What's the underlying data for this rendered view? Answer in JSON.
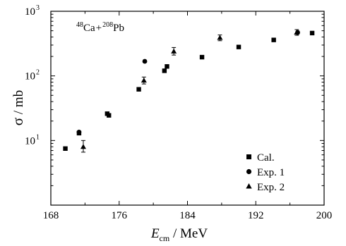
{
  "chart_data": {
    "type": "scatter",
    "title": "",
    "annotation": {
      "mass_projectile": "48",
      "projectile": "Ca",
      "plus": "+",
      "mass_target": "208",
      "target": "Pb"
    },
    "xlabel": {
      "symbol": "E",
      "subscript": "cm",
      "unit": " / MeV"
    },
    "ylabel": {
      "symbol": "σ",
      "unit": " / mb"
    },
    "x_scale": "linear",
    "y_scale": "log",
    "xlim": [
      168,
      200
    ],
    "ylim": [
      1,
      1000
    ],
    "x_ticks": [
      168,
      176,
      184,
      192,
      200
    ],
    "x_tick_labels": [
      "168",
      "176",
      "184",
      "192",
      "200"
    ],
    "y_ticks": [
      10,
      100,
      1000
    ],
    "y_tick_labels": [
      {
        "base": "10",
        "exp": "1"
      },
      {
        "base": "10",
        "exp": "2"
      },
      {
        "base": "10",
        "exp": "3"
      }
    ],
    "grid": false,
    "legend_position": "bottom-right",
    "series": [
      {
        "name": "Cal.",
        "marker": "square",
        "color": "#000000",
        "points": [
          {
            "x": 169.7,
            "y": 7.5
          },
          {
            "x": 171.3,
            "y": 13.0
          },
          {
            "x": 174.6,
            "y": 26.0
          },
          {
            "x": 174.8,
            "y": 24.5
          },
          {
            "x": 178.3,
            "y": 62.0
          },
          {
            "x": 181.3,
            "y": 120.0
          },
          {
            "x": 181.6,
            "y": 140.0
          },
          {
            "x": 185.7,
            "y": 195.0
          },
          {
            "x": 190.0,
            "y": 280.0
          },
          {
            "x": 194.1,
            "y": 360.0
          },
          {
            "x": 198.6,
            "y": 460.0
          }
        ]
      },
      {
        "name": "Exp. 1",
        "marker": "circle",
        "color": "#000000",
        "points": [
          {
            "x": 171.3,
            "y": 13.5
          },
          {
            "x": 179.0,
            "y": 168.0
          },
          {
            "x": 196.9,
            "y": 470.0
          }
        ]
      },
      {
        "name": "Exp. 2",
        "marker": "triangle",
        "color": "#000000",
        "points": [
          {
            "x": 171.8,
            "y": 8.0,
            "err_low": 6.6,
            "err_high": 10.0
          },
          {
            "x": 178.9,
            "y": 85.0,
            "err_low": 75.0,
            "err_high": 96.0
          },
          {
            "x": 182.4,
            "y": 240.0,
            "err_low": 210.0,
            "err_high": 275.0
          },
          {
            "x": 187.8,
            "y": 390.0,
            "err_low": 350.0,
            "err_high": 430.0
          },
          {
            "x": 196.8,
            "y": 470.0,
            "err_low": 425.0,
            "err_high": 520.0
          }
        ]
      }
    ]
  }
}
